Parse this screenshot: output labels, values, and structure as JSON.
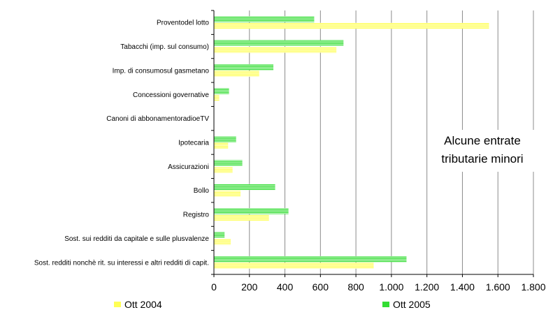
{
  "chart_data": {
    "type": "bar",
    "orientation": "horizontal",
    "categories": [
      "Proventodel lotto",
      "Tabacchi (imp. sul consumo)",
      "Imp. di consumosul gasmetano",
      "Concessioni governative",
      "Canoni di abbonamentoradioeTV",
      "Ipotecaria",
      "Assicurazioni",
      "Bollo",
      "Registro",
      "Sost. sui redditi da capitale e sulle plusvalenze",
      "Sost. redditi nonchè rit. su interessi e altri redditi di capit."
    ],
    "series": [
      {
        "name": "Ott 2005",
        "color": "#33dd33",
        "values": [
          565,
          730,
          335,
          85,
          0,
          125,
          160,
          345,
          420,
          60,
          1085
        ]
      },
      {
        "name": "Ott 2004",
        "color": "#ffff55",
        "values": [
          1550,
          690,
          255,
          30,
          0,
          80,
          105,
          150,
          310,
          95,
          900
        ]
      }
    ],
    "xlim": [
      0,
      1800
    ],
    "xticks": [
      "0",
      "200",
      "400",
      "600",
      "800",
      "1.000",
      "1.200",
      "1.400",
      "1.600",
      "1.800"
    ],
    "grid": "vertical",
    "annotation": [
      "Alcune entrate",
      "tributarie minori"
    ],
    "legend_position": "bottom"
  }
}
